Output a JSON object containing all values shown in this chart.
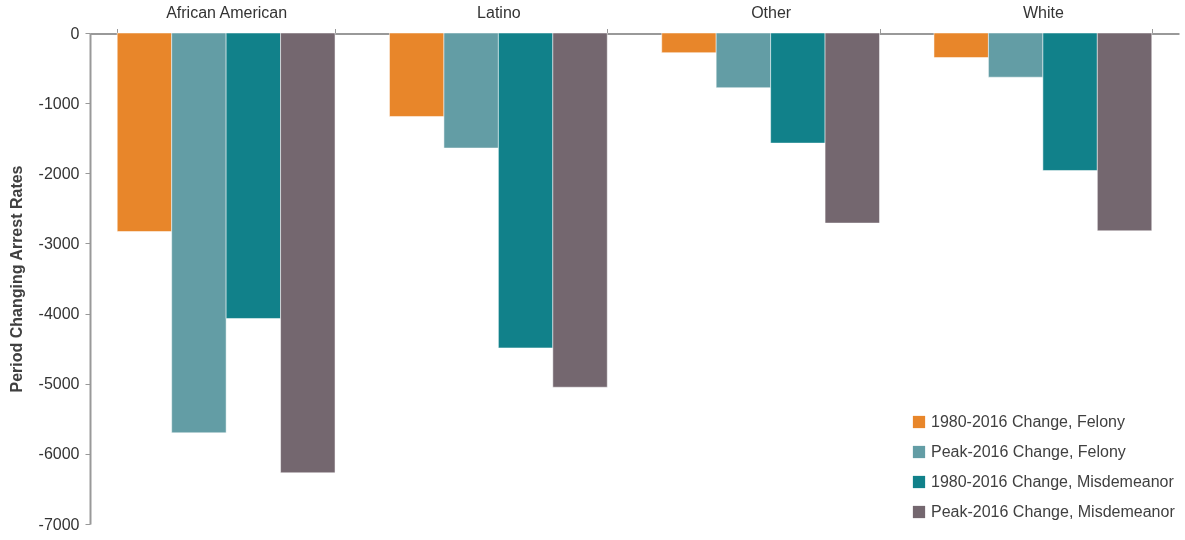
{
  "chart_data": {
    "type": "bar",
    "ylabel": "Period Changing Arrest Rates",
    "categories": [
      "African American",
      "Latino",
      "Other",
      "White"
    ],
    "series": [
      {
        "name": "1980-2016 Change, Felony",
        "color": "#e8862a",
        "values": [
          -2830,
          -1190,
          -280,
          -350
        ]
      },
      {
        "name": "Peak-2016 Change, Felony",
        "color": "#639da5",
        "values": [
          -5700,
          -1640,
          -780,
          -630
        ]
      },
      {
        "name": "1980-2016 Change, Misdemeanor",
        "color": "#11818a",
        "values": [
          -4070,
          -4490,
          -1570,
          -1960
        ]
      },
      {
        "name": "Peak-2016 Change, Misdemeanor",
        "color": "#74676f",
        "values": [
          -6270,
          -5050,
          -2710,
          -2820
        ]
      }
    ],
    "ylim": [
      -7000,
      0
    ],
    "yticks": [
      0,
      -1000,
      -2000,
      -3000,
      -4000,
      -5000,
      -6000,
      -7000
    ],
    "grid": false,
    "legend": "bottom right"
  }
}
